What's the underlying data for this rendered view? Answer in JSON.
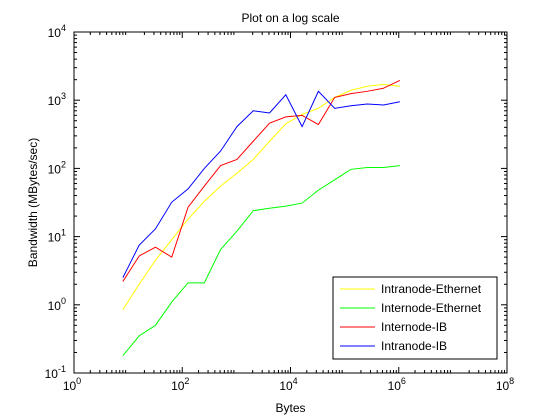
{
  "chart_data": {
    "type": "line",
    "title": "Plot on a log scale",
    "xlabel": "Bytes",
    "ylabel": "Bandwidth (MBytes/sec)",
    "xscale": "log",
    "yscale": "log",
    "xlim": [
      1,
      100000000
    ],
    "ylim": [
      0.1,
      10000
    ],
    "x_ticks": [
      {
        "value": 1,
        "base": "10",
        "exp": "0"
      },
      {
        "value": 100,
        "base": "10",
        "exp": "2"
      },
      {
        "value": 10000,
        "base": "10",
        "exp": "4"
      },
      {
        "value": 1000000,
        "base": "10",
        "exp": "6"
      },
      {
        "value": 100000000,
        "base": "10",
        "exp": "8"
      }
    ],
    "y_ticks": [
      {
        "value": 0.1,
        "base": "10",
        "exp": "-1"
      },
      {
        "value": 1,
        "base": "10",
        "exp": "0"
      },
      {
        "value": 10,
        "base": "10",
        "exp": "1"
      },
      {
        "value": 100,
        "base": "10",
        "exp": "2"
      },
      {
        "value": 1000,
        "base": "10",
        "exp": "3"
      },
      {
        "value": 10000,
        "base": "10",
        "exp": "4"
      }
    ],
    "grid": false,
    "legend_position": "bottom-right",
    "x": [
      8,
      16,
      32,
      64,
      128,
      256,
      512,
      1024,
      2048,
      4096,
      8192,
      16384,
      32768,
      65536,
      131072,
      262144,
      524288,
      1048576
    ],
    "series": [
      {
        "name": "Intranode-Ethernet",
        "color": "#ffff00",
        "values": [
          0.85,
          2.0,
          4.5,
          9.0,
          18,
          33,
          55,
          85,
          135,
          250,
          450,
          620,
          760,
          1100,
          1400,
          1600,
          1700,
          1600
        ]
      },
      {
        "name": "Internode-Ethernet",
        "color": "#00ff00",
        "values": [
          0.18,
          0.35,
          0.5,
          1.1,
          2.1,
          2.1,
          6.5,
          12,
          24,
          26,
          28,
          31,
          48,
          68,
          97,
          103,
          103,
          110
        ]
      },
      {
        "name": "Internode-IB",
        "color": "#ff0000",
        "values": [
          2.2,
          5.2,
          7.0,
          5.0,
          27,
          55,
          110,
          135,
          250,
          460,
          570,
          600,
          440,
          1100,
          1250,
          1350,
          1500,
          1950
        ]
      },
      {
        "name": "Intranode-IB",
        "color": "#0000ff",
        "values": [
          2.5,
          7.5,
          13,
          32,
          50,
          100,
          180,
          410,
          700,
          650,
          1200,
          410,
          1350,
          760,
          830,
          880,
          850,
          950
        ]
      }
    ]
  }
}
